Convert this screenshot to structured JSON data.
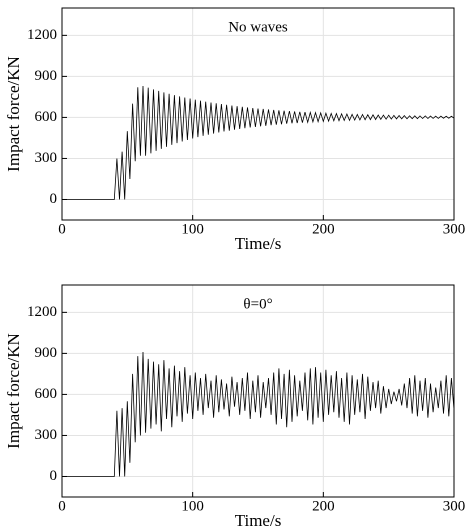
{
  "chart_data": [
    {
      "type": "line",
      "annotation": "No waves",
      "xlabel": "Time/s",
      "ylabel": "Impact force/KN",
      "xlim": [
        0,
        300
      ],
      "xticks": [
        0,
        100,
        200,
        300
      ],
      "ylim": [
        -150,
        1400
      ],
      "yticks": [
        0,
        300,
        600,
        900,
        1200
      ],
      "grid": true,
      "series": [
        {
          "color": "#000000",
          "x": [
            0,
            40,
            42,
            44,
            46,
            48,
            50,
            52,
            54,
            56,
            58,
            60,
            62,
            64,
            66,
            68,
            70,
            72,
            74,
            76,
            78,
            80,
            82,
            84,
            86,
            88,
            90,
            92,
            94,
            96,
            98,
            100,
            102,
            104,
            106,
            108,
            110,
            112,
            114,
            116,
            118,
            120,
            122,
            124,
            126,
            128,
            130,
            132,
            134,
            136,
            138,
            140,
            142,
            144,
            146,
            148,
            150,
            152,
            154,
            156,
            158,
            160,
            162,
            164,
            166,
            168,
            170,
            172,
            174,
            176,
            178,
            180,
            182,
            184,
            186,
            188,
            190,
            192,
            194,
            196,
            198,
            200,
            202,
            204,
            206,
            208,
            210,
            212,
            214,
            216,
            218,
            220,
            222,
            224,
            226,
            228,
            230,
            232,
            234,
            236,
            238,
            240,
            242,
            244,
            246,
            248,
            250,
            252,
            254,
            256,
            258,
            260,
            262,
            264,
            266,
            268,
            270,
            272,
            274,
            276,
            278,
            280,
            282,
            284,
            286,
            288,
            290,
            292,
            294,
            296,
            298,
            300
          ],
          "values": [
            0,
            0,
            300,
            0,
            350,
            0,
            500,
            150,
            700,
            280,
            820,
            320,
            830,
            320,
            817,
            338,
            805,
            355,
            794,
            370,
            783,
            385,
            773,
            399,
            763,
            412,
            754,
            424,
            746,
            435,
            738,
            446,
            730,
            456,
            723,
            465,
            716,
            474,
            709,
            482,
            703,
            490,
            698,
            497,
            692,
            503,
            687,
            510,
            682,
            516,
            678,
            521,
            673,
            526,
            669,
            531,
            665,
            535,
            662,
            539,
            658,
            543,
            655,
            547,
            652,
            550,
            649,
            554,
            646,
            557,
            644,
            559,
            641,
            562,
            639,
            564,
            637,
            567,
            635,
            569,
            633,
            571,
            631,
            573,
            629,
            575,
            628,
            576,
            626,
            578,
            625,
            579,
            623,
            581,
            622,
            582,
            621,
            583,
            620,
            584,
            619,
            585,
            618,
            586,
            617,
            587,
            616,
            588,
            615,
            589,
            614,
            589,
            613,
            590,
            612,
            591,
            612,
            591,
            611,
            592,
            611,
            592,
            610,
            593,
            609,
            593,
            609,
            594,
            608,
            594,
            608,
            594
          ]
        }
      ]
    },
    {
      "type": "line",
      "annotation": "θ=0°",
      "xlabel": "Time/s",
      "ylabel": "Impact force/KN",
      "xlim": [
        0,
        300
      ],
      "xticks": [
        0,
        100,
        200,
        300
      ],
      "ylim": [
        -150,
        1400
      ],
      "yticks": [
        0,
        300,
        600,
        900,
        1200
      ],
      "grid": true,
      "series": [
        {
          "color": "#000000",
          "x": [
            0,
            40,
            42,
            44,
            46,
            48,
            50,
            52,
            54,
            56,
            58,
            60,
            62,
            64,
            66,
            68,
            70,
            72,
            74,
            76,
            78,
            80,
            82,
            84,
            86,
            88,
            90,
            92,
            94,
            96,
            98,
            100,
            102,
            104,
            106,
            108,
            110,
            112,
            114,
            116,
            118,
            120,
            122,
            124,
            126,
            128,
            130,
            132,
            134,
            136,
            138,
            140,
            142,
            144,
            146,
            148,
            150,
            152,
            154,
            156,
            158,
            160,
            162,
            164,
            166,
            168,
            170,
            172,
            174,
            176,
            178,
            180,
            182,
            184,
            186,
            188,
            190,
            192,
            194,
            196,
            198,
            200,
            202,
            204,
            206,
            208,
            210,
            212,
            214,
            216,
            218,
            220,
            222,
            224,
            226,
            228,
            230,
            232,
            234,
            236,
            238,
            240,
            242,
            244,
            246,
            248,
            250,
            252,
            254,
            256,
            258,
            260,
            262,
            264,
            266,
            268,
            270,
            272,
            274,
            276,
            278,
            280,
            282,
            284,
            286,
            288,
            290,
            292,
            294,
            296,
            298,
            300
          ],
          "values": [
            0,
            0,
            480,
            0,
            500,
            0,
            550,
            100,
            750,
            250,
            880,
            300,
            910,
            320,
            860,
            350,
            840,
            380,
            820,
            330,
            850,
            420,
            790,
            360,
            810,
            440,
            770,
            400,
            800,
            460,
            740,
            420,
            760,
            480,
            720,
            450,
            750,
            500,
            700,
            430,
            740,
            470,
            710,
            490,
            680,
            440,
            730,
            510,
            690,
            450,
            720,
            480,
            760,
            420,
            700,
            470,
            740,
            430,
            690,
            500,
            720,
            450,
            760,
            380,
            790,
            420,
            750,
            360,
            780,
            400,
            740,
            440,
            700,
            480,
            760,
            410,
            790,
            380,
            800,
            430,
            760,
            400,
            780,
            450,
            740,
            470,
            770,
            430,
            720,
            400,
            760,
            380,
            740,
            450,
            710,
            470,
            750,
            420,
            730,
            480,
            690,
            500,
            700,
            460,
            660,
            500,
            640,
            530,
            620,
            550,
            640,
            520,
            680,
            500,
            720,
            460,
            740,
            440,
            700,
            480,
            720,
            430,
            680,
            470,
            650,
            500,
            700,
            460,
            740,
            440,
            720,
            490
          ]
        }
      ]
    }
  ]
}
